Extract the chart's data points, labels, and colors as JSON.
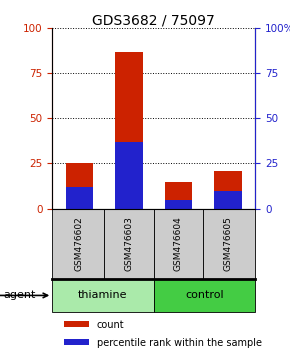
{
  "title": "GDS3682 / 75097",
  "samples": [
    "GSM476602",
    "GSM476603",
    "GSM476604",
    "GSM476605"
  ],
  "count_values": [
    25,
    87,
    15,
    21
  ],
  "percentile_values": [
    12,
    37,
    5,
    10
  ],
  "groups": [
    {
      "label": "thiamine",
      "indices": [
        0,
        1
      ],
      "color": "#aaeaaa"
    },
    {
      "label": "control",
      "indices": [
        2,
        3
      ],
      "color": "#44cc44"
    }
  ],
  "group_label": "agent",
  "bar_color_count": "#cc2200",
  "bar_color_percentile": "#2222cc",
  "ylim": [
    0,
    100
  ],
  "yticks": [
    0,
    25,
    50,
    75,
    100
  ],
  "ytick_labels_left": [
    "0",
    "25",
    "50",
    "75",
    "100"
  ],
  "ytick_labels_right": [
    "0",
    "25",
    "50",
    "75",
    "100%"
  ],
  "legend_count": "count",
  "legend_percentile": "percentile rank within the sample",
  "title_fontsize": 10,
  "tick_fontsize": 7.5,
  "sample_fontsize": 6.5,
  "group_fontsize": 8,
  "legend_fontsize": 7,
  "bar_width": 0.55,
  "sample_box_color": "#cccccc",
  "thiamine_color_light": "#b8f0b8",
  "thiamine_color_dark": "#55dd55"
}
